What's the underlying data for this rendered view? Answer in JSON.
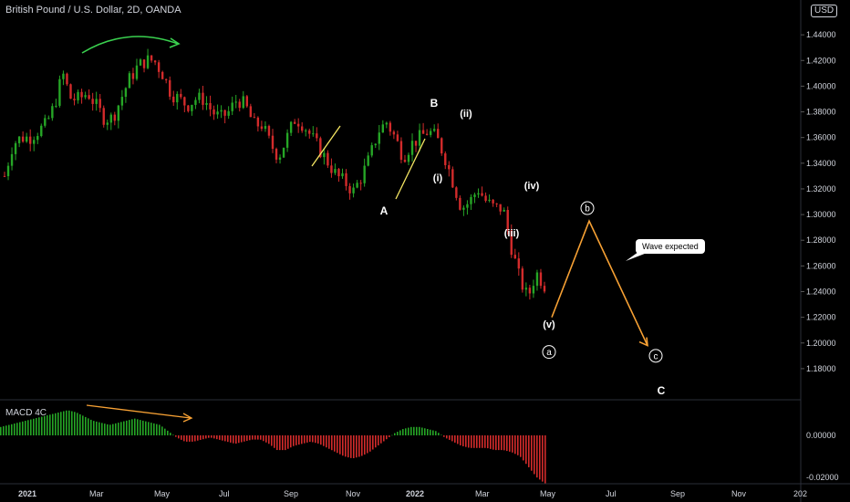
{
  "header": {
    "title": "British Pound / U.S. Dollar, 2D, OANDA",
    "currency": "USD"
  },
  "indicator": {
    "label": "MACD 4C"
  },
  "callout": {
    "text": "Wave expected"
  },
  "colors": {
    "up": "#26a626",
    "down": "#d32b2b",
    "accent": "#f7a134",
    "arrow_green": "#3ad14f",
    "yellow": "#f5e663",
    "text": "#d1d4dc"
  },
  "chart_data": {
    "type": "candlestick",
    "price_axis": {
      "min": 1.165,
      "max": 1.46,
      "ticks": [
        "1.18000",
        "1.20000",
        "1.22000",
        "1.24000",
        "1.26000",
        "1.28000",
        "1.30000",
        "1.32000",
        "1.34000",
        "1.36000",
        "1.38000",
        "1.40000",
        "1.42000",
        "1.44000"
      ]
    },
    "macd_axis": {
      "ticks": [
        "0.00000",
        "-0.02000"
      ]
    },
    "x_axis": {
      "ticks": [
        "2021",
        "Mar",
        "May",
        "Jul",
        "Sep",
        "Nov",
        "2022",
        "Mar",
        "May",
        "Jul",
        "Sep",
        "Nov",
        "202"
      ]
    },
    "price_path": [
      1.33,
      1.355,
      1.36,
      1.36,
      1.365,
      1.37,
      1.385,
      1.41,
      1.39,
      1.39,
      1.395,
      1.385,
      1.375,
      1.375,
      1.39,
      1.405,
      1.415,
      1.42,
      1.42,
      1.41,
      1.395,
      1.39,
      1.385,
      1.39,
      1.39,
      1.38,
      1.375,
      1.38,
      1.39,
      1.385,
      1.37,
      1.37,
      1.355,
      1.345,
      1.36,
      1.375,
      1.37,
      1.36,
      1.35,
      1.34,
      1.33,
      1.325,
      1.318,
      1.33,
      1.345,
      1.365,
      1.372,
      1.36,
      1.345,
      1.355,
      1.36,
      1.365,
      1.36,
      1.345,
      1.325,
      1.305,
      1.31,
      1.32,
      1.31,
      1.305,
      1.305,
      1.275,
      1.25,
      1.235,
      1.255,
      1.245
    ],
    "macd_values": [
      0.004,
      0.005,
      0.006,
      0.007,
      0.008,
      0.009,
      0.01,
      0.011,
      0.012,
      0.011,
      0.009,
      0.007,
      0.006,
      0.005,
      0.006,
      0.007,
      0.008,
      0.007,
      0.006,
      0.005,
      0.002,
      -0.001,
      -0.003,
      -0.003,
      -0.002,
      -0.001,
      -0.002,
      -0.003,
      -0.004,
      -0.003,
      -0.002,
      -0.002,
      -0.004,
      -0.007,
      -0.007,
      -0.005,
      -0.004,
      -0.003,
      -0.004,
      -0.006,
      -0.008,
      -0.01,
      -0.011,
      -0.01,
      -0.008,
      -0.005,
      -0.002,
      0.001,
      0.003,
      0.004,
      0.004,
      0.003,
      0.002,
      -0.001,
      -0.003,
      -0.005,
      -0.006,
      -0.006,
      -0.006,
      -0.007,
      -0.007,
      -0.008,
      -0.01,
      -0.015,
      -0.02,
      -0.023
    ],
    "wave_labels": [
      {
        "text": "B",
        "price": 1.384
      },
      {
        "text": "(ii)",
        "price": 1.376
      },
      {
        "text": "(i)",
        "price": 1.326
      },
      {
        "text": "(iv)",
        "price": 1.32
      },
      {
        "text": "A",
        "price": 1.3
      },
      {
        "text": "(iii)",
        "price": 1.283
      },
      {
        "text": "(v)",
        "price": 1.212
      },
      {
        "text": "C",
        "price": 1.16
      }
    ],
    "circle_labels": [
      {
        "text": "b",
        "price": 1.305
      },
      {
        "text": "a",
        "price": 1.193
      },
      {
        "text": "c",
        "price": 1.19
      }
    ],
    "projection": [
      {
        "price": 1.22
      },
      {
        "price": 1.295
      },
      {
        "price": 1.198
      }
    ]
  }
}
